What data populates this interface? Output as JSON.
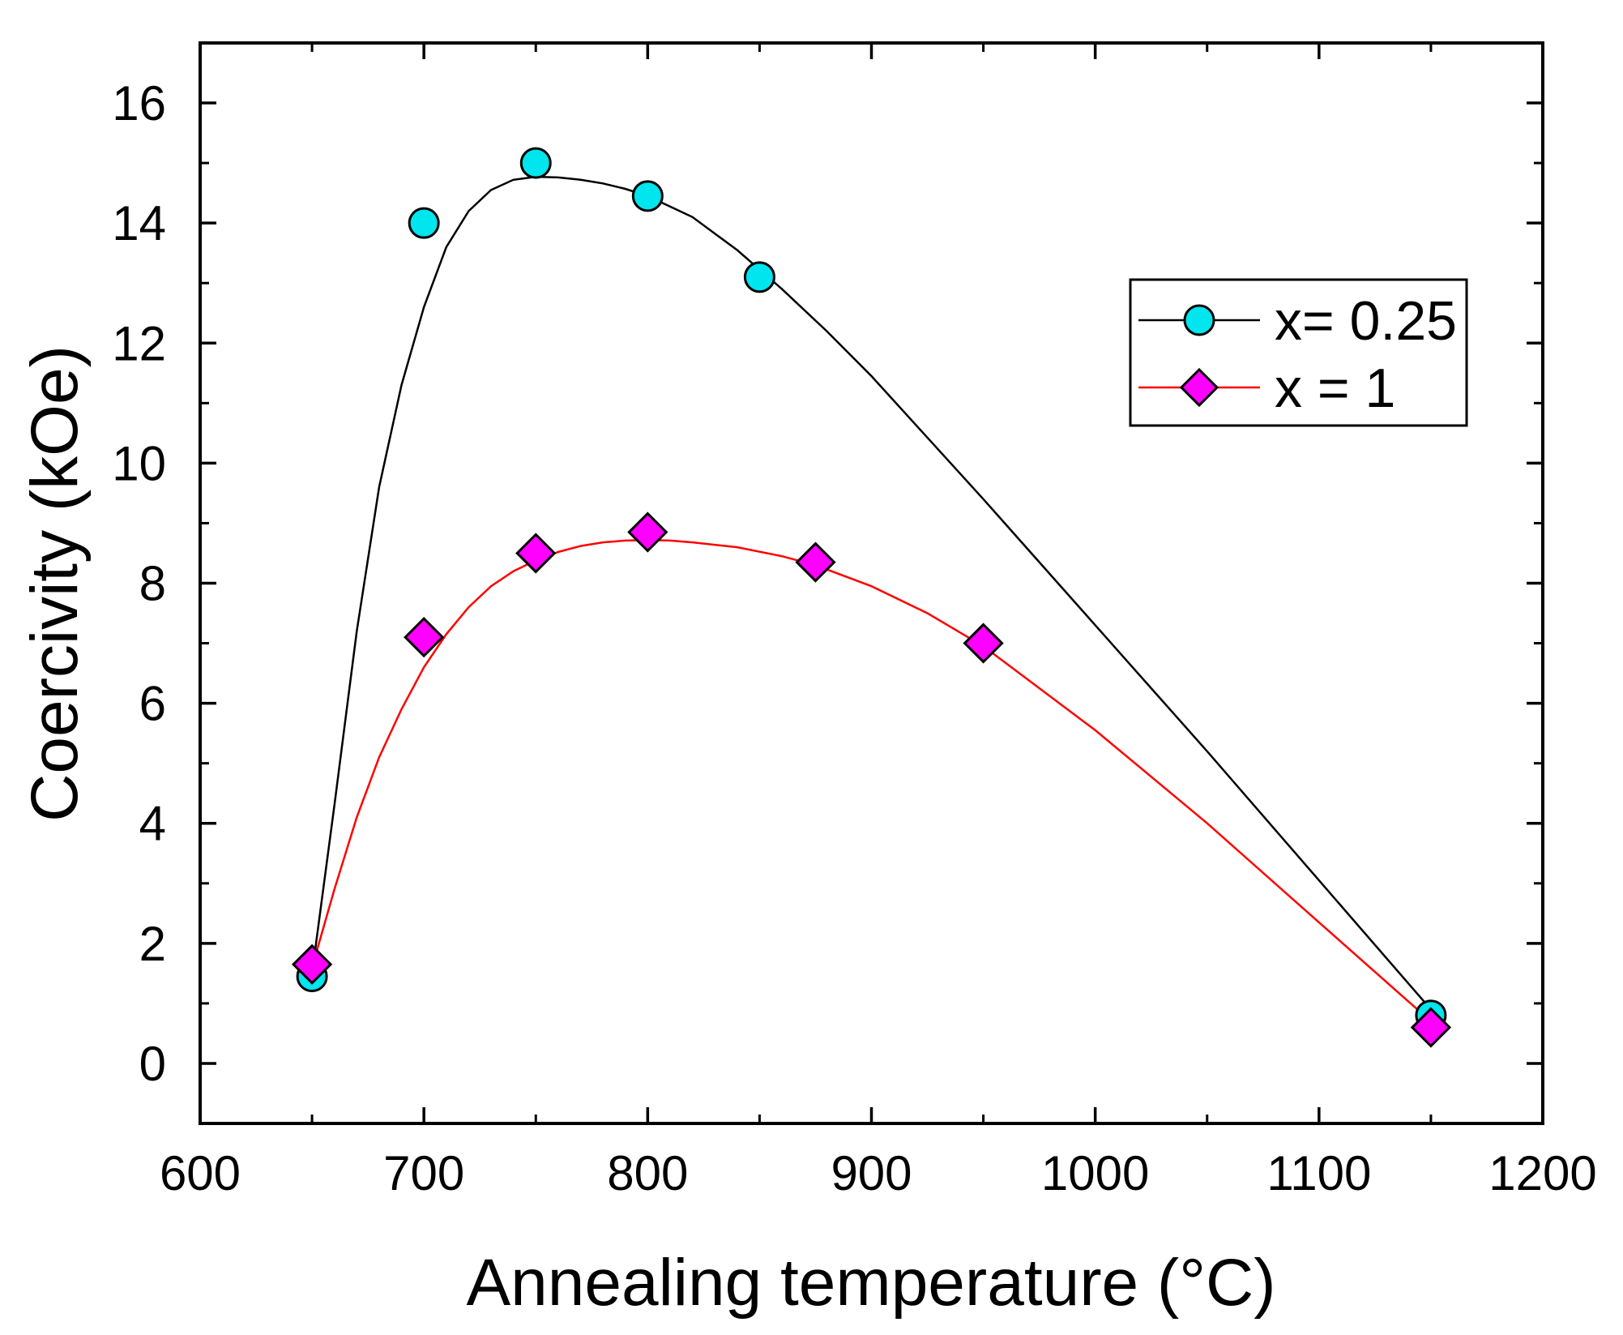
{
  "chart_data": {
    "type": "line",
    "title": "",
    "xlabel": "Annealing temperature (°C)",
    "ylabel": "Coercivity (kOe)",
    "xlim": [
      600,
      1200
    ],
    "ylim": [
      -1,
      17
    ],
    "xticks": [
      600,
      700,
      800,
      900,
      1000,
      1100,
      1200
    ],
    "xtick_labels": [
      "600",
      "700",
      "800",
      "900",
      "1000",
      "1100",
      "1200"
    ],
    "yticks": [
      0,
      2,
      4,
      6,
      8,
      10,
      12,
      14,
      16
    ],
    "ytick_labels": [
      "0",
      "2",
      "4",
      "6",
      "8",
      "10",
      "12",
      "14",
      "16"
    ],
    "grid": false,
    "legend_position": "upper-right",
    "series": [
      {
        "name": "x= 0.25",
        "marker": "circle",
        "marker_color": "#00e5ee",
        "line_color": "#000000",
        "x": [
          650,
          700,
          750,
          800,
          850,
          1150
        ],
        "y": [
          1.45,
          14.0,
          15.0,
          14.45,
          13.1,
          0.8
        ],
        "fit_x": [
          650,
          660,
          670,
          680,
          690,
          700,
          710,
          720,
          730,
          740,
          750,
          760,
          770,
          780,
          790,
          800,
          820,
          840,
          860,
          880,
          900,
          950,
          1000,
          1050,
          1100,
          1150
        ],
        "fit_y": [
          1.5,
          4.3,
          7.2,
          9.6,
          11.3,
          12.6,
          13.6,
          14.2,
          14.55,
          14.72,
          14.77,
          14.76,
          14.72,
          14.66,
          14.57,
          14.45,
          14.1,
          13.55,
          12.9,
          12.2,
          11.45,
          9.4,
          7.3,
          5.2,
          3.05,
          0.9
        ]
      },
      {
        "name": "x = 1",
        "marker": "diamond",
        "marker_color": "#ff00ff",
        "line_color": "#ff0000",
        "x": [
          650,
          700,
          750,
          800,
          875,
          950,
          1150
        ],
        "y": [
          1.65,
          7.1,
          8.5,
          8.85,
          8.35,
          7.0,
          0.6
        ],
        "fit_x": [
          650,
          660,
          670,
          680,
          690,
          700,
          710,
          720,
          730,
          740,
          750,
          760,
          770,
          780,
          790,
          800,
          810,
          820,
          840,
          860,
          875,
          900,
          925,
          950,
          1000,
          1050,
          1100,
          1150
        ],
        "fit_y": [
          1.6,
          2.9,
          4.1,
          5.1,
          5.9,
          6.6,
          7.15,
          7.6,
          7.95,
          8.2,
          8.38,
          8.52,
          8.62,
          8.68,
          8.71,
          8.72,
          8.71,
          8.68,
          8.6,
          8.45,
          8.3,
          7.95,
          7.5,
          6.95,
          5.55,
          4.0,
          2.35,
          0.7
        ]
      }
    ]
  }
}
